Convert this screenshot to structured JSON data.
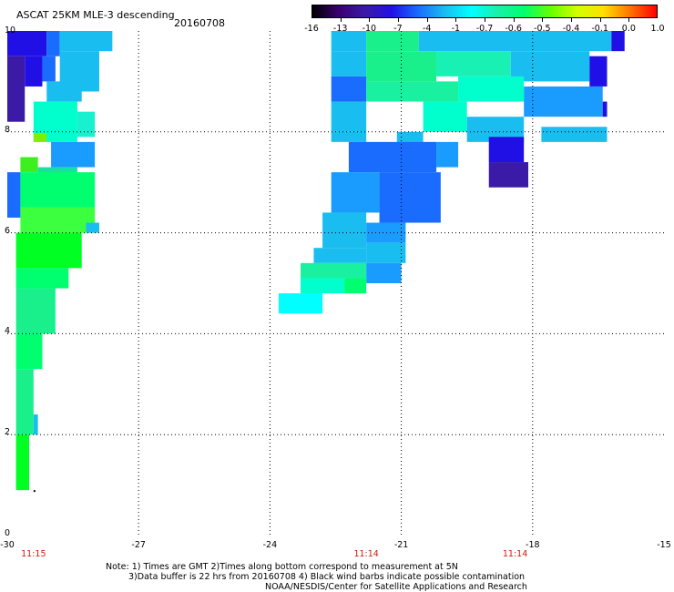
{
  "header": {
    "title": "ASCAT 25KM MLE-3 descending",
    "date": "20160708"
  },
  "colorbar": {
    "labels": [
      "-16",
      "-13",
      "-10",
      "-7",
      "-4",
      "-1",
      "-0.7",
      "-0.6",
      "-0.5",
      "-0.4",
      "-0.1",
      "0.0",
      "1.0"
    ],
    "colors": [
      "#000000",
      "#3a0070",
      "#3b1aa8",
      "#2010e6",
      "#1a6cff",
      "#19bdf0",
      "#00ffff",
      "#19f0a8",
      "#00ff6e",
      "#66ff00",
      "#d2ff00",
      "#ffdf00",
      "#ff7200",
      "#ff0000"
    ]
  },
  "axes": {
    "x_ticks": [
      "-30",
      "-27",
      "-24",
      "-21",
      "-18",
      "-15"
    ],
    "y_ticks": [
      "0",
      "2",
      "4",
      "6",
      "8",
      "10"
    ],
    "x_range": [
      -30,
      -15
    ],
    "y_range": [
      0,
      10
    ],
    "grid": "dotted"
  },
  "time_labels": [
    {
      "text": "11:15",
      "lon": -29.4
    },
    {
      "text": "11:14",
      "lon": -21.8
    },
    {
      "text": "11:14",
      "lon": -18.4
    }
  ],
  "notes": {
    "line1": "Note: 1) Times are GMT 2)Times along bottom correspond to measurement at 5N",
    "line2": "3)Data buffer is 22 hrs from 20160708 4) Black wind barbs indicate possible contamination",
    "line3": "NOAA/NESDIS/Center for Satellite Applications and Research"
  },
  "chart_data": {
    "type": "heatmap",
    "title": "ASCAT 25KM MLE-3 descending",
    "x_range": [
      -30,
      -15
    ],
    "y_range": [
      0,
      10
    ],
    "cells": [
      {
        "lon": [
          -30,
          -29.1
        ],
        "lat": [
          9.5,
          10
        ],
        "color": "#2010e6"
      },
      {
        "lon": [
          -29.1,
          -28.8
        ],
        "lat": [
          9.5,
          10
        ],
        "color": "#1a6cff"
      },
      {
        "lon": [
          -28.8,
          -27.6
        ],
        "lat": [
          9.6,
          10
        ],
        "color": "#19bdf0"
      },
      {
        "lon": [
          -30,
          -29.6
        ],
        "lat": [
          8.2,
          9.5
        ],
        "color": "#3b1aa8"
      },
      {
        "lon": [
          -29.6,
          -29.2
        ],
        "lat": [
          8.9,
          9.5
        ],
        "color": "#2010e6"
      },
      {
        "lon": [
          -29.2,
          -28.9
        ],
        "lat": [
          9.0,
          9.5
        ],
        "color": "#1a6cff"
      },
      {
        "lon": [
          -28.8,
          -27.9
        ],
        "lat": [
          8.8,
          9.6
        ],
        "color": "#19bdf0"
      },
      {
        "lon": [
          -29.1,
          -28.3
        ],
        "lat": [
          8.6,
          9.0
        ],
        "color": "#19bdf0"
      },
      {
        "lon": [
          -29.4,
          -28.4
        ],
        "lat": [
          7.8,
          8.6
        ],
        "color": "#00ffcc"
      },
      {
        "lon": [
          -28.4,
          -28.0
        ],
        "lat": [
          7.9,
          8.4
        ],
        "color": "#19f0d0"
      },
      {
        "lon": [
          -29.4,
          -29.1
        ],
        "lat": [
          7.8,
          7.98
        ],
        "color": "#7cf000"
      },
      {
        "lon": [
          -29.0,
          -28.0
        ],
        "lat": [
          7.3,
          7.8
        ],
        "color": "#1a9cff"
      },
      {
        "lon": [
          -29.7,
          -29.3
        ],
        "lat": [
          7.2,
          7.5
        ],
        "color": "#3cf01e"
      },
      {
        "lon": [
          -29.3,
          -28.4
        ],
        "lat": [
          7.0,
          7.3
        ],
        "color": "#19e0a0"
      },
      {
        "lon": [
          -30,
          -29.7
        ],
        "lat": [
          6.3,
          7.2
        ],
        "color": "#1a6cff"
      },
      {
        "lon": [
          -29.7,
          -28.0
        ],
        "lat": [
          6.5,
          7.2
        ],
        "color": "#00ff6e"
      },
      {
        "lon": [
          -29.7,
          -28.0
        ],
        "lat": [
          6.0,
          6.5
        ],
        "color": "#3cff40"
      },
      {
        "lon": [
          -28.2,
          -27.9
        ],
        "lat": [
          6.0,
          6.2
        ],
        "color": "#19bdf0"
      },
      {
        "lon": [
          -29.8,
          -28.3
        ],
        "lat": [
          5.3,
          6.0
        ],
        "color": "#00ff22"
      },
      {
        "lon": [
          -29.8,
          -28.6
        ],
        "lat": [
          4.9,
          5.3
        ],
        "color": "#00ff6e"
      },
      {
        "lon": [
          -29.8,
          -28.9
        ],
        "lat": [
          4.0,
          4.9
        ],
        "color": "#19f08c"
      },
      {
        "lon": [
          -29.8,
          -29.2
        ],
        "lat": [
          3.3,
          4.0
        ],
        "color": "#00ff6e"
      },
      {
        "lon": [
          -29.8,
          -29.4
        ],
        "lat": [
          2.0,
          3.3
        ],
        "color": "#19f08c"
      },
      {
        "lon": [
          -29.4,
          -29.3
        ],
        "lat": [
          2.0,
          2.4
        ],
        "color": "#19bdf0"
      },
      {
        "lon": [
          -29.8,
          -29.5
        ],
        "lat": [
          0.9,
          2.0
        ],
        "color": "#00ff22"
      },
      {
        "lon": [
          -22.6,
          -21.8
        ],
        "lat": [
          9.6,
          10
        ],
        "color": "#19bdf0"
      },
      {
        "lon": [
          -21.8,
          -20.6
        ],
        "lat": [
          9.6,
          10
        ],
        "color": "#19f08c"
      },
      {
        "lon": [
          -20.6,
          -16.2
        ],
        "lat": [
          9.6,
          10
        ],
        "color": "#19bdf0"
      },
      {
        "lon": [
          -16.2,
          -15.9
        ],
        "lat": [
          9.6,
          10
        ],
        "color": "#2010e6"
      },
      {
        "lon": [
          -22.6,
          -21.8
        ],
        "lat": [
          9.1,
          9.6
        ],
        "color": "#19bdf0"
      },
      {
        "lon": [
          -21.8,
          -20.2
        ],
        "lat": [
          9.0,
          9.6
        ],
        "color": "#19f08c"
      },
      {
        "lon": [
          -20.2,
          -18.5
        ],
        "lat": [
          9.1,
          9.6
        ],
        "color": "#19f0b4"
      },
      {
        "lon": [
          -18.5,
          -16.7
        ],
        "lat": [
          9.0,
          9.6
        ],
        "color": "#1abdf0"
      },
      {
        "lon": [
          -16.7,
          -16.3
        ],
        "lat": [
          8.9,
          9.5
        ],
        "color": "#2010e6"
      },
      {
        "lon": [
          -22.6,
          -21.8
        ],
        "lat": [
          8.6,
          9.1
        ],
        "color": "#1a6cff"
      },
      {
        "lon": [
          -21.8,
          -19.7
        ],
        "lat": [
          8.6,
          9.0
        ],
        "color": "#19f0a0"
      },
      {
        "lon": [
          -19.7,
          -18.2
        ],
        "lat": [
          8.6,
          9.1
        ],
        "color": "#00ffcc"
      },
      {
        "lon": [
          -18.2,
          -16.4
        ],
        "lat": [
          8.3,
          8.9
        ],
        "color": "#1a9cff"
      },
      {
        "lon": [
          -16.4,
          -16.3
        ],
        "lat": [
          8.3,
          8.6
        ],
        "color": "#2010e6"
      },
      {
        "lon": [
          -22.6,
          -21.8
        ],
        "lat": [
          8.0,
          8.6
        ],
        "color": "#19bdf0"
      },
      {
        "lon": [
          -20.5,
          -19.5
        ],
        "lat": [
          8.0,
          8.6
        ],
        "color": "#00ffcc"
      },
      {
        "lon": [
          -19.5,
          -18.2
        ],
        "lat": [
          7.8,
          8.3
        ],
        "color": "#1abdf0"
      },
      {
        "lon": [
          -17.8,
          -16.3
        ],
        "lat": [
          7.8,
          8.1
        ],
        "color": "#19bdf0"
      },
      {
        "lon": [
          -22.6,
          -21.8
        ],
        "lat": [
          7.8,
          8.0
        ],
        "color": "#19bdf0"
      },
      {
        "lon": [
          -21.1,
          -20.5
        ],
        "lat": [
          7.7,
          8.0
        ],
        "color": "#1abdf0"
      },
      {
        "lon": [
          -22.2,
          -20.2
        ],
        "lat": [
          7.2,
          7.8
        ],
        "color": "#1a6cff"
      },
      {
        "lon": [
          -20.2,
          -19.7
        ],
        "lat": [
          7.3,
          7.8
        ],
        "color": "#1a9cff"
      },
      {
        "lon": [
          -19.0,
          -18.2
        ],
        "lat": [
          7.4,
          7.9
        ],
        "color": "#2010e6"
      },
      {
        "lon": [
          -19.0,
          -18.1
        ],
        "lat": [
          6.9,
          7.4
        ],
        "color": "#3b1aa8"
      },
      {
        "lon": [
          -22.6,
          -21.5
        ],
        "lat": [
          6.4,
          7.2
        ],
        "color": "#1a9cff"
      },
      {
        "lon": [
          -21.5,
          -20.1
        ],
        "lat": [
          6.2,
          7.2
        ],
        "color": "#1a6cff"
      },
      {
        "lon": [
          -22.8,
          -21.8
        ],
        "lat": [
          5.7,
          6.4
        ],
        "color": "#19bdf0"
      },
      {
        "lon": [
          -21.8,
          -20.9
        ],
        "lat": [
          5.8,
          6.2
        ],
        "color": "#1a9cff"
      },
      {
        "lon": [
          -21.8,
          -20.9
        ],
        "lat": [
          5.4,
          5.8
        ],
        "color": "#19bdf0"
      },
      {
        "lon": [
          -23.0,
          -21.8
        ],
        "lat": [
          5.4,
          5.7
        ],
        "color": "#19bdf0"
      },
      {
        "lon": [
          -23.3,
          -21.8
        ],
        "lat": [
          5.1,
          5.4
        ],
        "color": "#19f0a0"
      },
      {
        "lon": [
          -21.8,
          -21.0
        ],
        "lat": [
          5.0,
          5.4
        ],
        "color": "#1a9cff"
      },
      {
        "lon": [
          -22.3,
          -21.8
        ],
        "lat": [
          4.8,
          5.1
        ],
        "color": "#00ff6e"
      },
      {
        "lon": [
          -23.3,
          -22.3
        ],
        "lat": [
          4.8,
          5.1
        ],
        "color": "#00ffcc"
      },
      {
        "lon": [
          -23.8,
          -22.8
        ],
        "lat": [
          4.4,
          4.8
        ],
        "color": "#00ffff"
      }
    ]
  }
}
